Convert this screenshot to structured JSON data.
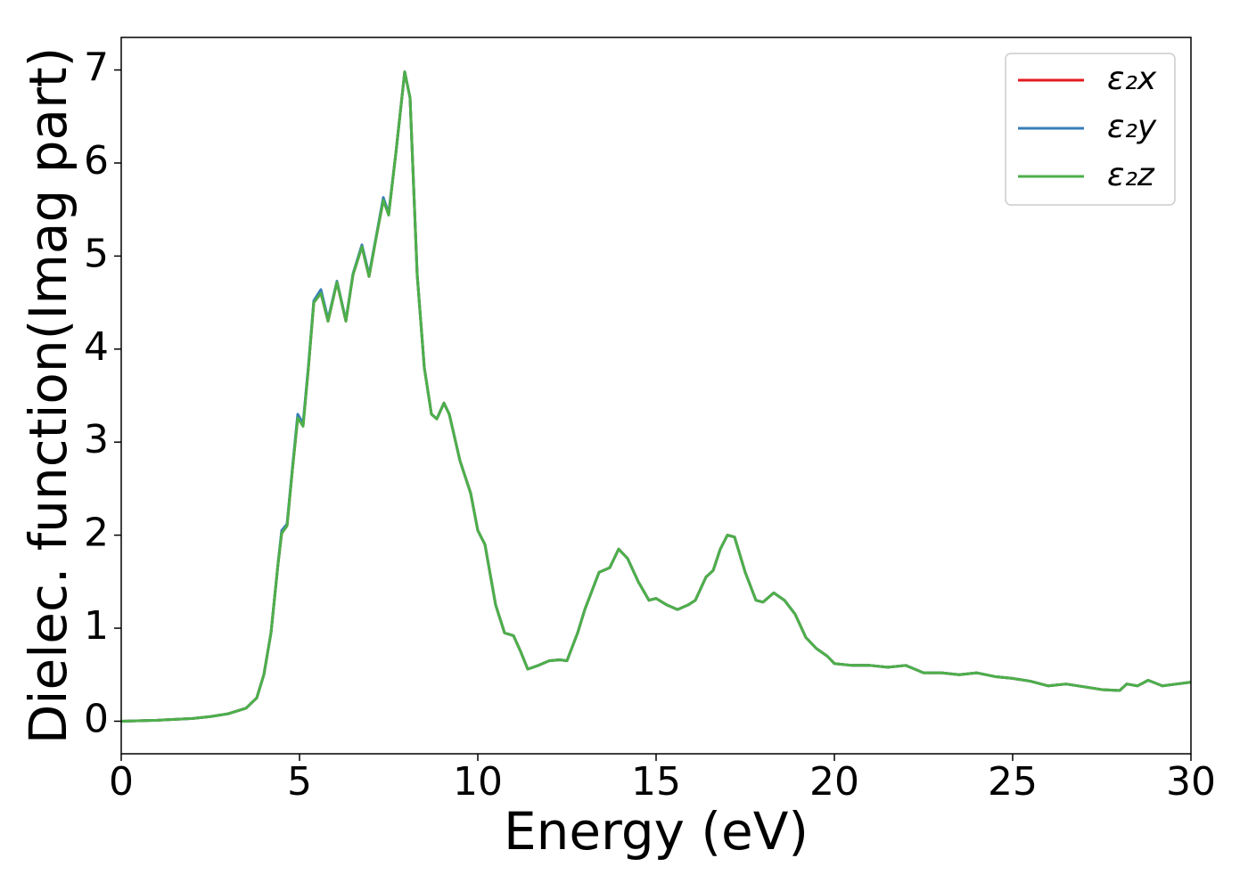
{
  "chart_data": {
    "type": "line",
    "xlabel": "Energy (eV)",
    "ylabel": "Dielec. function(Imag part)",
    "x": [
      0,
      1,
      2,
      2.5,
      3,
      3.5,
      3.8,
      4.0,
      4.2,
      4.4,
      4.5,
      4.65,
      4.8,
      4.95,
      5.1,
      5.25,
      5.4,
      5.6,
      5.8,
      6.05,
      6.3,
      6.5,
      6.75,
      6.95,
      7.15,
      7.35,
      7.5,
      7.7,
      7.95,
      8.1,
      8.3,
      8.5,
      8.7,
      8.85,
      9.05,
      9.2,
      9.5,
      9.8,
      10.0,
      10.2,
      10.5,
      10.75,
      11.0,
      11.2,
      11.4,
      11.7,
      12.0,
      12.3,
      12.5,
      12.8,
      13.0,
      13.4,
      13.7,
      13.95,
      14.2,
      14.5,
      14.8,
      15.0,
      15.3,
      15.6,
      15.9,
      16.1,
      16.4,
      16.6,
      16.8,
      17.0,
      17.2,
      17.5,
      17.8,
      18.0,
      18.3,
      18.6,
      18.9,
      19.2,
      19.5,
      19.8,
      20.0,
      20.5,
      21.0,
      21.5,
      22.0,
      22.5,
      23.0,
      23.5,
      24.0,
      24.5,
      25.0,
      25.5,
      26.0,
      26.5,
      27.0,
      27.5,
      28.0,
      28.2,
      28.5,
      28.8,
      29.2,
      29.6,
      30.0
    ],
    "series": [
      {
        "name": "ε₂x",
        "color": "#e41a1c",
        "values": [
          0.0,
          0.01,
          0.03,
          0.05,
          0.08,
          0.14,
          0.25,
          0.5,
          0.95,
          1.7,
          2.02,
          2.1,
          2.7,
          3.26,
          3.18,
          3.8,
          4.5,
          4.6,
          4.3,
          4.72,
          4.3,
          4.8,
          5.1,
          4.78,
          5.2,
          5.6,
          5.45,
          6.1,
          6.98,
          6.7,
          4.8,
          3.8,
          3.3,
          3.25,
          3.42,
          3.3,
          2.8,
          2.45,
          2.05,
          1.9,
          1.25,
          0.95,
          0.92,
          0.75,
          0.56,
          0.6,
          0.65,
          0.66,
          0.65,
          0.95,
          1.2,
          1.6,
          1.65,
          1.85,
          1.75,
          1.5,
          1.3,
          1.32,
          1.25,
          1.2,
          1.25,
          1.3,
          1.55,
          1.62,
          1.85,
          2.0,
          1.98,
          1.6,
          1.3,
          1.28,
          1.38,
          1.3,
          1.15,
          0.9,
          0.78,
          0.7,
          0.62,
          0.6,
          0.6,
          0.58,
          0.6,
          0.52,
          0.52,
          0.5,
          0.52,
          0.48,
          0.46,
          0.43,
          0.38,
          0.4,
          0.37,
          0.34,
          0.33,
          0.4,
          0.38,
          0.44,
          0.38,
          0.4,
          0.42
        ]
      },
      {
        "name": "ε₂y",
        "color": "#377eb8",
        "values": [
          0.0,
          0.01,
          0.03,
          0.05,
          0.08,
          0.14,
          0.25,
          0.5,
          0.95,
          1.7,
          2.05,
          2.12,
          2.72,
          3.3,
          3.2,
          3.82,
          4.52,
          4.64,
          4.32,
          4.73,
          4.31,
          4.81,
          5.12,
          4.8,
          5.21,
          5.63,
          5.46,
          6.1,
          6.98,
          6.7,
          4.8,
          3.8,
          3.3,
          3.25,
          3.42,
          3.3,
          2.8,
          2.45,
          2.05,
          1.9,
          1.25,
          0.95,
          0.92,
          0.75,
          0.56,
          0.6,
          0.65,
          0.66,
          0.65,
          0.95,
          1.2,
          1.6,
          1.65,
          1.85,
          1.75,
          1.5,
          1.3,
          1.32,
          1.25,
          1.2,
          1.25,
          1.3,
          1.55,
          1.62,
          1.85,
          2.0,
          1.98,
          1.6,
          1.3,
          1.28,
          1.38,
          1.3,
          1.15,
          0.9,
          0.78,
          0.7,
          0.62,
          0.6,
          0.6,
          0.58,
          0.6,
          0.52,
          0.52,
          0.5,
          0.52,
          0.48,
          0.46,
          0.43,
          0.38,
          0.4,
          0.37,
          0.34,
          0.33,
          0.4,
          0.38,
          0.44,
          0.38,
          0.4,
          0.42
        ]
      },
      {
        "name": "ε₂z",
        "color": "#4daf4a",
        "values": [
          0.0,
          0.01,
          0.03,
          0.05,
          0.08,
          0.14,
          0.25,
          0.5,
          0.95,
          1.7,
          2.02,
          2.1,
          2.7,
          3.26,
          3.17,
          3.8,
          4.5,
          4.6,
          4.3,
          4.72,
          4.3,
          4.8,
          5.1,
          4.78,
          5.2,
          5.6,
          5.44,
          6.1,
          6.98,
          6.7,
          4.8,
          3.8,
          3.3,
          3.25,
          3.42,
          3.3,
          2.8,
          2.45,
          2.05,
          1.9,
          1.25,
          0.95,
          0.92,
          0.75,
          0.56,
          0.6,
          0.65,
          0.66,
          0.65,
          0.95,
          1.2,
          1.6,
          1.65,
          1.85,
          1.75,
          1.5,
          1.3,
          1.32,
          1.25,
          1.2,
          1.25,
          1.3,
          1.55,
          1.62,
          1.85,
          2.0,
          1.98,
          1.6,
          1.3,
          1.28,
          1.38,
          1.3,
          1.15,
          0.9,
          0.78,
          0.7,
          0.62,
          0.6,
          0.6,
          0.58,
          0.6,
          0.52,
          0.52,
          0.5,
          0.52,
          0.48,
          0.46,
          0.43,
          0.38,
          0.4,
          0.37,
          0.34,
          0.33,
          0.4,
          0.38,
          0.44,
          0.38,
          0.4,
          0.42
        ]
      }
    ],
    "xlim": [
      0,
      30
    ],
    "xticks": [
      0,
      5,
      10,
      15,
      20,
      25,
      30
    ],
    "ylim": [
      -0.35,
      7.35
    ],
    "yticks": [
      0,
      1,
      2,
      3,
      4,
      5,
      6,
      7
    ],
    "legend": "upper right"
  }
}
